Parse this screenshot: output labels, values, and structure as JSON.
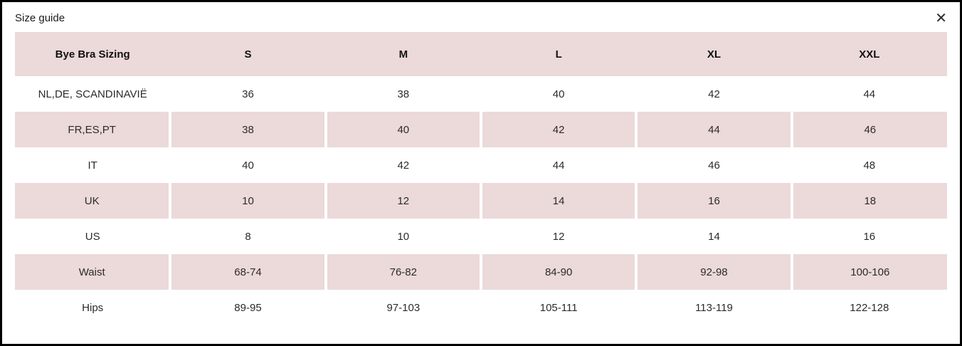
{
  "modal": {
    "title": "Size guide",
    "close_glyph": "✕"
  },
  "colors": {
    "row_pink": "#ecd9d9"
  },
  "table": {
    "headers": [
      "Bye Bra Sizing",
      "S",
      "M",
      "L",
      "XL",
      "XXL"
    ],
    "rows": [
      {
        "label": "NL,DE, SCANDINAVIË",
        "values": [
          "36",
          "38",
          "40",
          "42",
          "44"
        ]
      },
      {
        "label": "FR,ES,PT",
        "values": [
          "38",
          "40",
          "42",
          "44",
          "46"
        ]
      },
      {
        "label": "IT",
        "values": [
          "40",
          "42",
          "44",
          "46",
          "48"
        ]
      },
      {
        "label": "UK",
        "values": [
          "10",
          "12",
          "14",
          "16",
          "18"
        ]
      },
      {
        "label": "US",
        "values": [
          "8",
          "10",
          "12",
          "14",
          "16"
        ]
      },
      {
        "label": "Waist",
        "values": [
          "68-74",
          "76-82",
          "84-90",
          "92-98",
          "100-106"
        ]
      },
      {
        "label": "Hips",
        "values": [
          "89-95",
          "97-103",
          "105-111",
          "113-119",
          "122-128"
        ]
      }
    ]
  }
}
